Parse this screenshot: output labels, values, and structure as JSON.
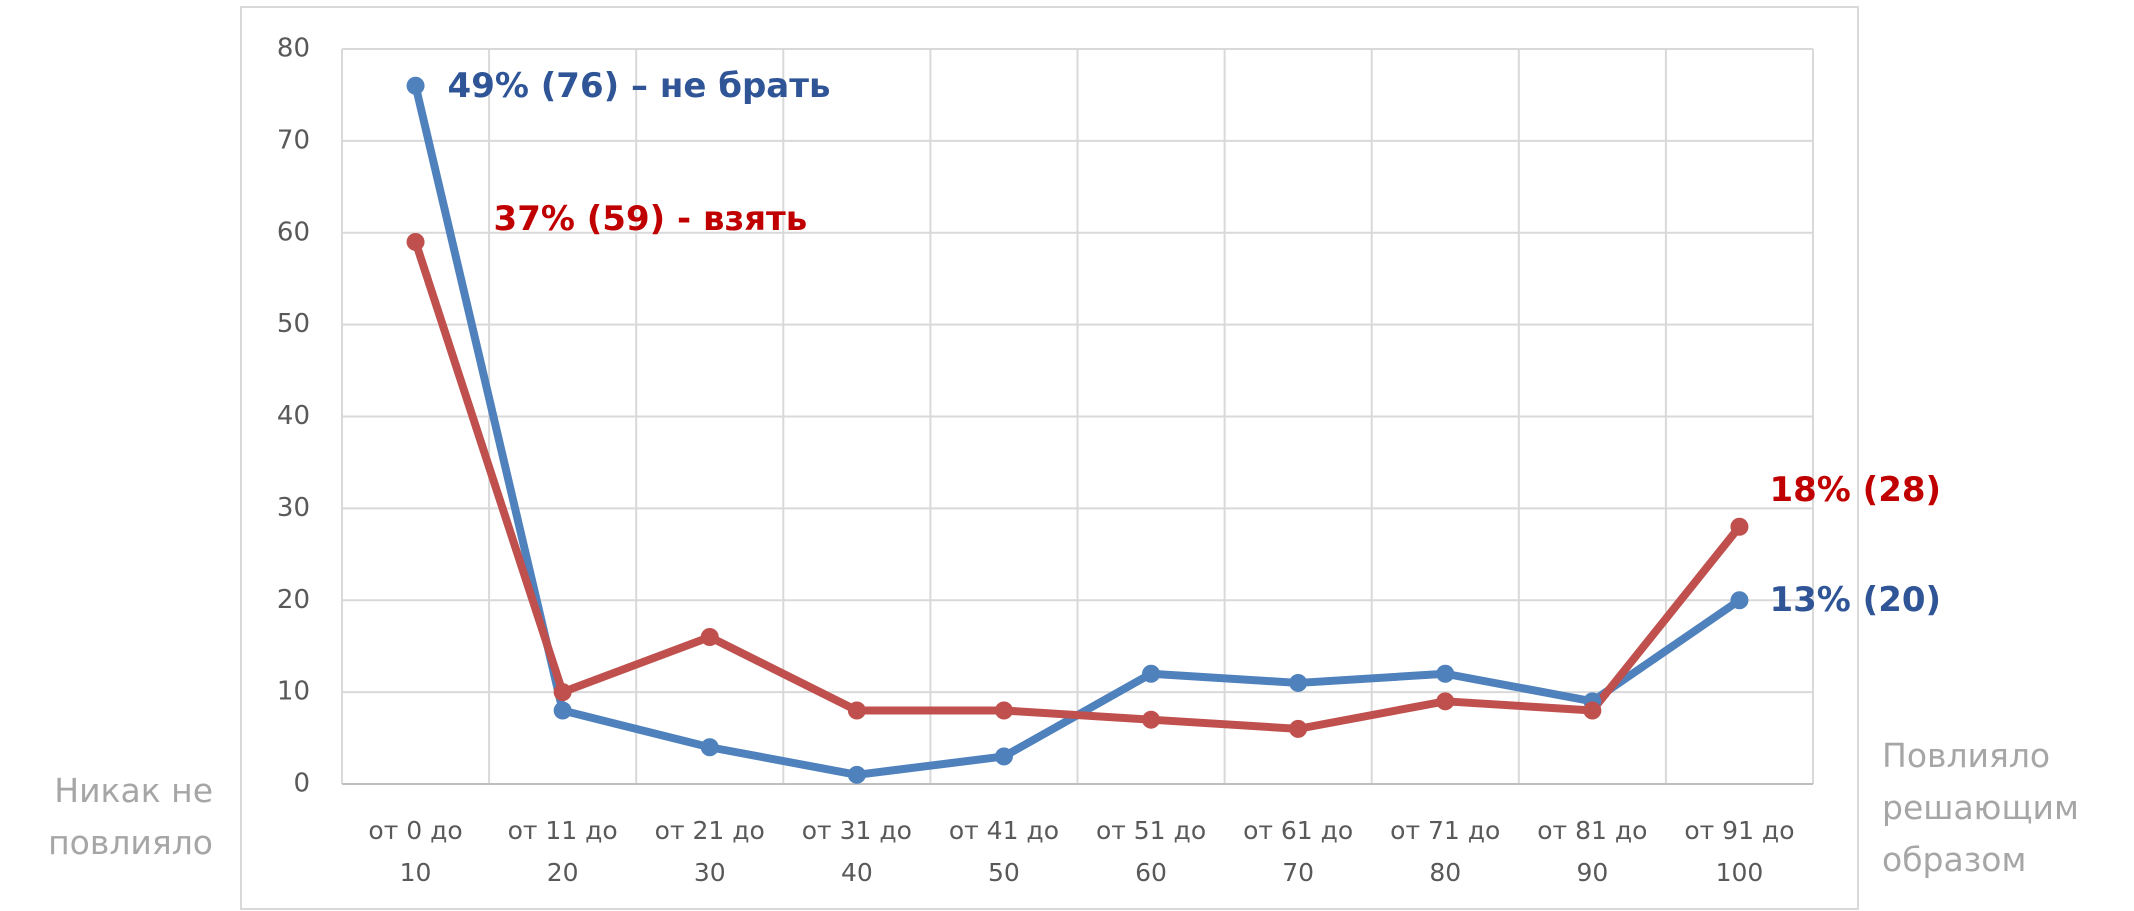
{
  "chart_data": {
    "type": "line",
    "categories": [
      "от 0 до 10",
      "от 11 до 20",
      "от 21 до 30",
      "от 31 до 40",
      "от 41 до 50",
      "от 51 до 60",
      "от 61 до 70",
      "от 71 до 80",
      "от 81 до 90",
      "от 91 до 100"
    ],
    "series": [
      {
        "color": "#4f81bd",
        "values": [
          76,
          8,
          4,
          1,
          3,
          12,
          11,
          12,
          9,
          20
        ]
      },
      {
        "color": "#c0504d",
        "values": [
          59,
          10,
          16,
          8,
          8,
          7,
          6,
          9,
          8,
          28
        ]
      }
    ],
    "annotations": [
      {
        "text": "49% (76) – не брать",
        "color": "#2f5597"
      },
      {
        "text": "37% (59) - взять",
        "color": "#c00000"
      },
      {
        "text": "18% (28)",
        "color": "#c00000"
      },
      {
        "text": "13% (20)",
        "color": "#2f5597"
      }
    ],
    "x_axis_left_label": "Никак не повлияло",
    "x_axis_right_label": "Повлияло решающим образом",
    "ylim": [
      0,
      80
    ],
    "yticks": [
      0,
      10,
      20,
      30,
      40,
      50,
      60,
      70,
      80
    ],
    "grid": true
  }
}
